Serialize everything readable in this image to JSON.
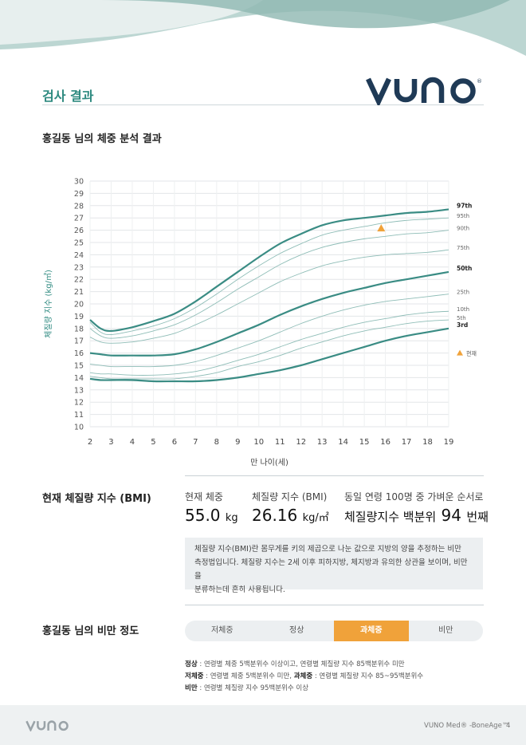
{
  "page": {
    "section_title": "검사 결과",
    "analysis_title": "홍길동 님의 체중 분석 결과",
    "brand_color": "#2e8a80",
    "accent_color": "#f0a23a"
  },
  "chart_data": {
    "type": "line",
    "xlabel": "만 나이(세)",
    "ylabel": "체질량 지수 (kg/㎡)",
    "xlim": [
      2,
      19
    ],
    "ylim": [
      10,
      30
    ],
    "x_ticks": [
      "2",
      "3",
      "4",
      "5",
      "6",
      "7",
      "8",
      "9",
      "10",
      "11",
      "12",
      "13",
      "14",
      "15",
      "16",
      "17",
      "18",
      "19"
    ],
    "y_ticks": [
      "10",
      "11",
      "12",
      "13",
      "14",
      "15",
      "16",
      "17",
      "18",
      "19",
      "20",
      "21",
      "22",
      "23",
      "24",
      "25",
      "26",
      "27",
      "28",
      "29",
      "30"
    ],
    "grid": true,
    "x": [
      2,
      2.5,
      3,
      4,
      5,
      6,
      7,
      8,
      9,
      10,
      11,
      12,
      13,
      14,
      15,
      16,
      17,
      18,
      19
    ],
    "series": [
      {
        "name": "97th",
        "bold": true,
        "values": [
          18.7,
          18.0,
          17.8,
          18.1,
          18.6,
          19.2,
          20.2,
          21.4,
          22.6,
          23.8,
          24.9,
          25.7,
          26.4,
          26.8,
          27.0,
          27.2,
          27.4,
          27.5,
          27.7
        ]
      },
      {
        "name": "95th",
        "bold": false,
        "values": [
          18.5,
          17.7,
          17.5,
          17.8,
          18.2,
          18.8,
          19.7,
          20.8,
          22.0,
          23.1,
          24.1,
          24.9,
          25.6,
          26.0,
          26.3,
          26.6,
          26.8,
          26.9,
          27.0
        ]
      },
      {
        "name": "90th",
        "bold": false,
        "values": [
          18.0,
          17.4,
          17.2,
          17.4,
          17.8,
          18.3,
          19.1,
          20.1,
          21.2,
          22.2,
          23.2,
          24.0,
          24.6,
          25.0,
          25.3,
          25.5,
          25.7,
          25.8,
          26.0
        ]
      },
      {
        "name": "75th",
        "bold": false,
        "values": [
          17.3,
          16.9,
          16.8,
          16.9,
          17.2,
          17.6,
          18.3,
          19.1,
          20.0,
          20.9,
          21.8,
          22.5,
          23.1,
          23.5,
          23.8,
          24.0,
          24.1,
          24.2,
          24.4
        ]
      },
      {
        "name": "50th",
        "bold": true,
        "values": [
          16.0,
          15.9,
          15.8,
          15.8,
          15.8,
          15.9,
          16.3,
          16.9,
          17.6,
          18.3,
          19.1,
          19.8,
          20.4,
          20.9,
          21.3,
          21.7,
          22.0,
          22.3,
          22.6
        ]
      },
      {
        "name": "25th",
        "bold": false,
        "values": [
          15.1,
          15.0,
          14.9,
          14.9,
          14.9,
          15.0,
          15.3,
          15.8,
          16.4,
          17.0,
          17.7,
          18.4,
          19.0,
          19.5,
          19.9,
          20.2,
          20.4,
          20.6,
          20.8
        ]
      },
      {
        "name": "10th",
        "bold": false,
        "values": [
          14.4,
          14.3,
          14.3,
          14.2,
          14.2,
          14.3,
          14.5,
          14.9,
          15.4,
          15.9,
          16.5,
          17.1,
          17.6,
          18.1,
          18.5,
          18.8,
          19.1,
          19.3,
          19.4
        ]
      },
      {
        "name": "5th",
        "bold": false,
        "values": [
          14.1,
          14.0,
          13.9,
          13.9,
          13.9,
          13.9,
          14.1,
          14.4,
          14.9,
          15.3,
          15.8,
          16.4,
          16.9,
          17.4,
          17.8,
          18.1,
          18.4,
          18.6,
          18.7
        ]
      },
      {
        "name": "3rd",
        "bold": true,
        "values": [
          13.9,
          13.8,
          13.8,
          13.8,
          13.7,
          13.7,
          13.7,
          13.8,
          14.0,
          14.3,
          14.6,
          15.0,
          15.5,
          16.0,
          16.5,
          17.0,
          17.4,
          17.7,
          18.0
        ]
      }
    ],
    "current_point": {
      "x": 15.8,
      "y": 26.16,
      "label": "현재"
    }
  },
  "bmi": {
    "title": "현재 체질량 지수 (BMI)",
    "weight_label": "현재 체중",
    "weight_value": "55.0",
    "weight_unit": "kg",
    "bmi_label": "체질량 지수 (BMI)",
    "bmi_value": "26.16",
    "bmi_unit": "kg/㎡",
    "rank_label": "동일 연령 100명 중 가벼운 순서로",
    "rank_prefix": "체질량지수 백분위",
    "rank_value": "94",
    "rank_suffix": "번째",
    "note_line1": "체질량 지수(BMI)란 몸무게를 키의 제곱으로 나눈 값으로 지방의 양을 추정하는 비만",
    "note_line2": "측정법입니다. 체질량 지수는 2세 이후 피하지방, 체지방과 유의한 상관을 보이며, 비만을",
    "note_line3": "분류하는데 흔히 사용됩니다."
  },
  "obesity": {
    "title": "홍길동 님의 비만 정도",
    "levels": [
      "저체중",
      "정상",
      "과체중",
      "비만"
    ],
    "active_index": 2,
    "def_normal_term": "정상",
    "def_normal": " : 연령별 체중 5백분위수 이상이고, 연령별 체질량 지수 85백분위수 미만",
    "def_under_term": "저체중",
    "def_under": " : 연령별 체중 5백분위수 미만, ",
    "def_over_term": "과체중",
    "def_over": " : 연령별 체질량 지수 85~95백분위수",
    "def_obese_term": "비만",
    "def_obese": " : 연령별 체질량 지수 95백분위수 이상"
  },
  "footer": {
    "product": "VUNO Med® -BoneAge™",
    "page": "4"
  }
}
